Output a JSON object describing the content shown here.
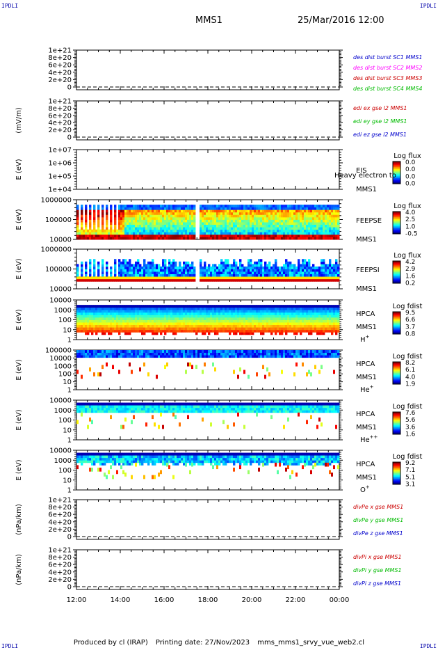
{
  "corners": {
    "top_left": "IPDLI",
    "top_right": "IPDLI",
    "bottom_left": "IPDLI",
    "bottom_right": "IPDLI"
  },
  "header": {
    "mission": "MMS1",
    "datetime": "25/Mar/2016 12:00"
  },
  "footer": {
    "producer": "Produced by cl (IRAP)",
    "printing_date": "Printing date: 27/Nov/2023",
    "script": "mms_mms1_srvy_vue_web2.cl"
  },
  "chart_data": [
    {
      "type": "line",
      "ylabel": "",
      "yticks": [
        "1e+21",
        "8e+20",
        "6e+20",
        "4e+20",
        "2e+20",
        "0"
      ],
      "series": [
        {
          "name": "des dist burst SC1 MMS1",
          "color": "#0000cc",
          "values": [
            0
          ]
        },
        {
          "name": "des dist burst SC2 MMS2",
          "color": "#ff00ff",
          "values": [
            0
          ]
        },
        {
          "name": "des dist burst SC3 MMS3",
          "color": "#cc0000",
          "values": [
            0
          ]
        },
        {
          "name": "des dist burst SC4 MMS4",
          "color": "#00bb00",
          "values": [
            0
          ]
        }
      ]
    },
    {
      "type": "line",
      "ylabel": "(mV/m)",
      "yticks": [
        "1e+21",
        "8e+20",
        "6e+20",
        "4e+20",
        "2e+20",
        "0"
      ],
      "series": [
        {
          "name": "edi ex gse l2 MMS1",
          "color": "#cc0000",
          "values": [
            0
          ]
        },
        {
          "name": "edi ey gse l2 MMS1",
          "color": "#00bb00",
          "values": [
            0
          ]
        },
        {
          "name": "edi ez gse l2 MMS1",
          "color": "#0000cc",
          "values": [
            0
          ]
        }
      ]
    },
    {
      "type": "heatmap",
      "ylabel": "E (eV)",
      "yticks": [
        "1e+07",
        "1e+06",
        "1e+05",
        "1e+04"
      ],
      "label_lines": [
        "EIS",
        "MMS1"
      ],
      "overlay_text": "Heavy electron to",
      "colorbar_title": "Log flux",
      "colorbar_ticks": [
        "0.0",
        "0.0",
        "0.0",
        "0.0"
      ],
      "pattern": "none"
    },
    {
      "type": "heatmap",
      "ylabel": "E (eV)",
      "yticks": [
        "1000000",
        "100000",
        "10000"
      ],
      "label_lines": [
        "FEEPSE",
        "MMS1"
      ],
      "colorbar_title": "Log flux",
      "colorbar_ticks": [
        "4.0",
        "2.5",
        "1.0",
        "-0.5"
      ],
      "pattern": "feepse"
    },
    {
      "type": "heatmap",
      "ylabel": "E (eV)",
      "yticks": [
        "1000000",
        "100000",
        "10000"
      ],
      "label_lines": [
        "FEEPSI",
        "MMS1"
      ],
      "colorbar_title": "Log flux",
      "colorbar_ticks": [
        "4.2",
        "2.9",
        "1.6",
        "0.2"
      ],
      "pattern": "feepsi"
    },
    {
      "type": "heatmap",
      "ylabel": "E (eV)",
      "yticks": [
        "10000",
        "1000",
        "100",
        "10",
        "1"
      ],
      "label_lines": [
        "HPCA",
        "MMS1"
      ],
      "species": "H",
      "species_sup": "+",
      "colorbar_title": "Log fdist",
      "colorbar_ticks": [
        "9.5",
        "6.6",
        "3.7",
        "0.8"
      ],
      "pattern": "h"
    },
    {
      "type": "heatmap",
      "ylabel": "E (eV)",
      "yticks": [
        "100000",
        "10000",
        "1000",
        "100",
        "10",
        "1"
      ],
      "label_lines": [
        "HPCA",
        "MMS1"
      ],
      "species": "He",
      "species_sup": "+",
      "colorbar_title": "Log fdist",
      "colorbar_ticks": [
        "8.2",
        "6.1",
        "4.0",
        "1.9"
      ],
      "pattern": "hep"
    },
    {
      "type": "heatmap",
      "ylabel": "E (eV)",
      "yticks": [
        "10000",
        "1000",
        "100",
        "10",
        "1"
      ],
      "label_lines": [
        "HPCA",
        "MMS1"
      ],
      "species": "He",
      "species_sup": "++",
      "colorbar_title": "Log fdist",
      "colorbar_ticks": [
        "7.6",
        "5.6",
        "3.6",
        "1.6"
      ],
      "pattern": "hepp"
    },
    {
      "type": "heatmap",
      "ylabel": "E (eV)",
      "yticks": [
        "10000",
        "1000",
        "100",
        "10",
        "1"
      ],
      "label_lines": [
        "HPCA",
        "MMS1"
      ],
      "species": "O",
      "species_sup": "+",
      "colorbar_title": "Log fdist",
      "colorbar_ticks": [
        "9.2",
        "7.1",
        "5.1",
        "3.1"
      ],
      "pattern": "o"
    },
    {
      "type": "line",
      "ylabel": "(nPa/km)",
      "yticks": [
        "1e+21",
        "8e+20",
        "6e+20",
        "4e+20",
        "2e+20",
        "0"
      ],
      "series": [
        {
          "name": "divPe x gse MMS1",
          "color": "#cc0000",
          "values": [
            0
          ]
        },
        {
          "name": "divPe y gse MMS1",
          "color": "#00bb00",
          "values": [
            0
          ]
        },
        {
          "name": "divPe z gse MMS1",
          "color": "#0000cc",
          "values": [
            0
          ]
        }
      ]
    },
    {
      "type": "line",
      "ylabel": "(nPa/km)",
      "yticks": [
        "1e+21",
        "8e+20",
        "6e+20",
        "4e+20",
        "2e+20",
        "0"
      ],
      "series": [
        {
          "name": "divPi x gse MMS1",
          "color": "#cc0000",
          "values": [
            0
          ]
        },
        {
          "name": "divPi y gse MMS1",
          "color": "#00bb00",
          "values": [
            0
          ]
        },
        {
          "name": "divPi z gse MMS1",
          "color": "#0000cc",
          "values": [
            0
          ]
        }
      ]
    }
  ],
  "x_axis": {
    "ticks": [
      "12:00",
      "14:00",
      "16:00",
      "18:00",
      "20:00",
      "22:00",
      "00:00"
    ]
  }
}
